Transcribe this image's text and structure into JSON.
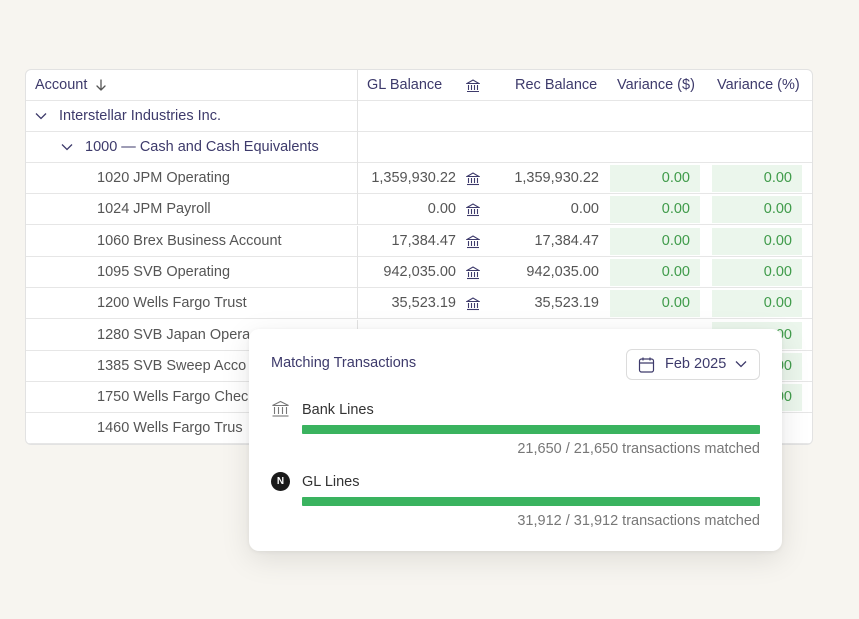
{
  "table": {
    "headers": {
      "account": "Account",
      "gl_balance": "GL Balance",
      "rec_balance": "Rec Balance",
      "variance_amt": "Variance ($)",
      "variance_pct": "Variance (%)"
    },
    "entity": "Interstellar Industries Inc.",
    "group": "1000 — Cash and Cash Equivalents",
    "rows": [
      {
        "account": "1020 JPM Operating",
        "gl": "1,359,930.22",
        "rec": "1,359,930.22",
        "var": "0.00",
        "varp": "0.00"
      },
      {
        "account": "1024 JPM Payroll",
        "gl": "0.00",
        "rec": "0.00",
        "var": "0.00",
        "varp": "0.00"
      },
      {
        "account": "1060 Brex Business Account",
        "gl": "17,384.47",
        "rec": "17,384.47",
        "var": "0.00",
        "varp": "0.00"
      },
      {
        "account": "1095 SVB Operating",
        "gl": "942,035.00",
        "rec": "942,035.00",
        "var": "0.00",
        "varp": "0.00"
      },
      {
        "account": "1200 Wells Fargo Trust",
        "gl": "35,523.19",
        "rec": "35,523.19",
        "var": "0.00",
        "varp": "0.00"
      },
      {
        "account": "1280 SVB Japan Opera",
        "gl": "",
        "rec": "",
        "var": "",
        "varp": "00"
      },
      {
        "account": "1385 SVB Sweep Acco",
        "gl": "",
        "rec": "",
        "var": "",
        "varp": "00"
      },
      {
        "account": "1750 Wells Fargo Chec",
        "gl": "",
        "rec": "",
        "var": "",
        "varp": "00"
      },
      {
        "account": "1460 Wells Fargo Trus",
        "gl": "",
        "rec": "",
        "var": "",
        "varp": ""
      }
    ]
  },
  "popup": {
    "title": "Matching Transactions",
    "period": "Feb 2025",
    "bank_lines": {
      "label": "Bank Lines",
      "caption": "21,650 / 21,650 transactions matched",
      "matched_fraction": 1.0
    },
    "gl_lines": {
      "label": "GL Lines",
      "badge": "N",
      "caption": "31,912 / 31,912 transactions matched",
      "matched_fraction": 1.0
    }
  },
  "icons": [
    "sort-arrow-down-icon",
    "bank-icon",
    "chevron-down-icon",
    "calendar-icon",
    "netsuite-badge-icon"
  ],
  "colors": {
    "accent_text": "#3d3a6b",
    "match_green": "#3ab35f",
    "variance_bg": "#ebf6ec",
    "variance_text": "#3f9b4a"
  }
}
